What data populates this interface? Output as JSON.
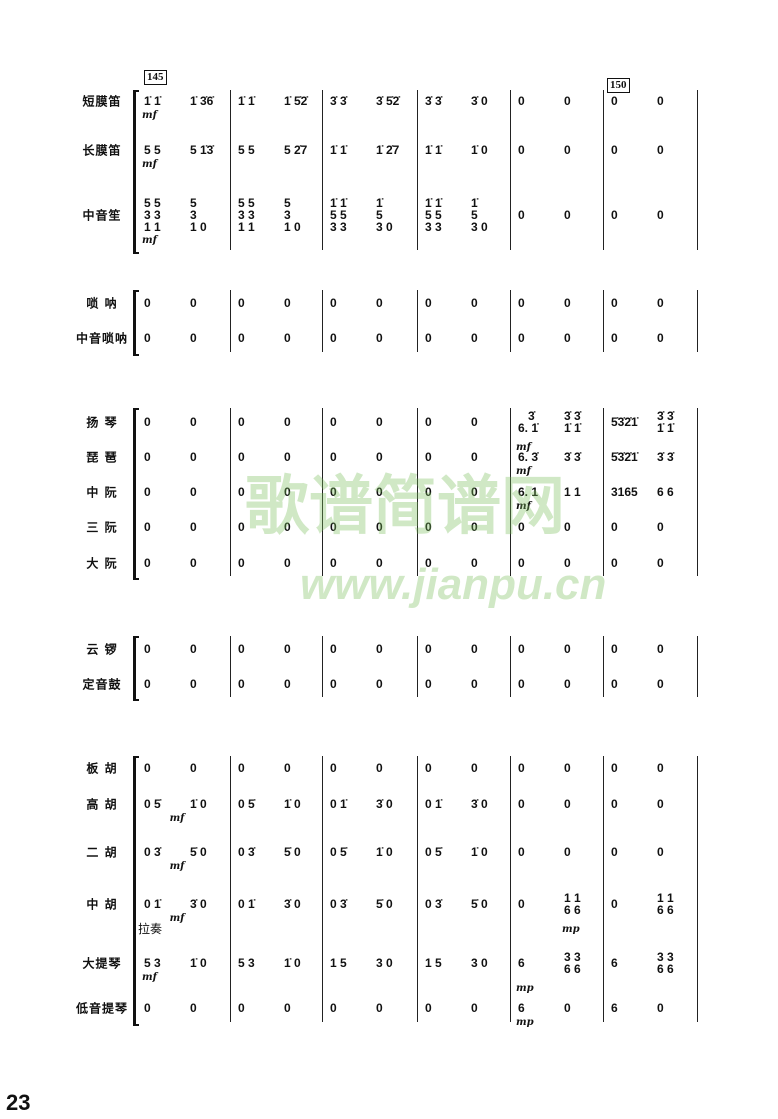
{
  "page_number": "23",
  "rehearsal_marks": [
    "145",
    "150"
  ],
  "annotation_lazou": "拉奏",
  "watermark": {
    "title": "歌谱简谱网",
    "url": "www.jianpu.cn",
    "color": "#78be5a"
  },
  "dynamics": {
    "mf": "mf",
    "mp": "mp"
  },
  "rows": [
    {
      "name": "短膜笛",
      "m": [
        [
          "1̇ 1̇",
          "1̇ 3̇6̇"
        ],
        [
          "1̇ 1̇",
          "1̇ 5̇2̇"
        ],
        [
          "3̇ 3̇",
          "3̇ 5̇2̇"
        ],
        [
          "3̇ 3̇",
          "3̇ 0"
        ],
        [
          "0",
          "0"
        ],
        [
          "0",
          "0"
        ]
      ]
    },
    {
      "name": "长膜笛",
      "m": [
        [
          "5 5",
          "5 1̇3̇"
        ],
        [
          "5 5",
          "5 2̇7"
        ],
        [
          "1̇ 1̇",
          "1̇ 2̇7"
        ],
        [
          "1̇ 1̇",
          "1̇ 0"
        ],
        [
          "0",
          "0"
        ],
        [
          "0",
          "0"
        ]
      ]
    },
    {
      "name": "中音笙",
      "m": [
        [
          "5 5\n3 3\n1 1",
          "5\n3\n1 0"
        ],
        [
          "5 5\n3 3\n1 1",
          "5\n3\n1 0"
        ],
        [
          "1̇ 1̇\n5 5\n3 3",
          "1̇\n5\n3 0"
        ],
        [
          "1̇ 1̇\n5 5\n3 3",
          "1̇\n5\n3 0"
        ],
        [
          "0",
          "0"
        ],
        [
          "0",
          "0"
        ]
      ]
    },
    {
      "name": "唢 呐",
      "m": [
        [
          "0",
          "0"
        ],
        [
          "0",
          "0"
        ],
        [
          "0",
          "0"
        ],
        [
          "0",
          "0"
        ],
        [
          "0",
          "0"
        ],
        [
          "0",
          "0"
        ]
      ]
    },
    {
      "name": "中音唢呐",
      "m": [
        [
          "0",
          "0"
        ],
        [
          "0",
          "0"
        ],
        [
          "0",
          "0"
        ],
        [
          "0",
          "0"
        ],
        [
          "0",
          "0"
        ],
        [
          "0",
          "0"
        ]
      ]
    },
    {
      "name": "扬 琴",
      "m": [
        [
          "0",
          "0"
        ],
        [
          "0",
          "0"
        ],
        [
          "0",
          "0"
        ],
        [
          "0",
          "0"
        ],
        [
          "   3̇\n6. 1̇",
          "3̇ 3̇\n1̇ 1̇"
        ],
        [
          "5̇3̇2̇1̇",
          "3̇ 3̇\n1̇ 1̇"
        ]
      ]
    },
    {
      "name": "琵 琶",
      "m": [
        [
          "0",
          "0"
        ],
        [
          "0",
          "0"
        ],
        [
          "0",
          "0"
        ],
        [
          "0",
          "0"
        ],
        [
          "6. 3̇",
          "3̇ 3̇"
        ],
        [
          "5̇3̇2̇1̇",
          "3̇ 3̇"
        ]
      ]
    },
    {
      "name": "中 阮",
      "m": [
        [
          "0",
          "0"
        ],
        [
          "0",
          "0"
        ],
        [
          "0",
          "0"
        ],
        [
          "0",
          "0"
        ],
        [
          "6. 1",
          "1 1"
        ],
        [
          "3165",
          "6 6"
        ]
      ]
    },
    {
      "name": "三 阮",
      "m": [
        [
          "0",
          "0"
        ],
        [
          "0",
          "0"
        ],
        [
          "0",
          "0"
        ],
        [
          "0",
          "0"
        ],
        [
          "0",
          "0"
        ],
        [
          "0",
          "0"
        ]
      ]
    },
    {
      "name": "大 阮",
      "m": [
        [
          "0",
          "0"
        ],
        [
          "0",
          "0"
        ],
        [
          "0",
          "0"
        ],
        [
          "0",
          "0"
        ],
        [
          "0",
          "0"
        ],
        [
          "0",
          "0"
        ]
      ]
    },
    {
      "name": "云 锣",
      "m": [
        [
          "0",
          "0"
        ],
        [
          "0",
          "0"
        ],
        [
          "0",
          "0"
        ],
        [
          "0",
          "0"
        ],
        [
          "0",
          "0"
        ],
        [
          "0",
          "0"
        ]
      ]
    },
    {
      "name": "定音鼓",
      "m": [
        [
          "0",
          "0"
        ],
        [
          "0",
          "0"
        ],
        [
          "0",
          "0"
        ],
        [
          "0",
          "0"
        ],
        [
          "0",
          "0"
        ],
        [
          "0",
          "0"
        ]
      ]
    },
    {
      "name": "板 胡",
      "m": [
        [
          "0",
          "0"
        ],
        [
          "0",
          "0"
        ],
        [
          "0",
          "0"
        ],
        [
          "0",
          "0"
        ],
        [
          "0",
          "0"
        ],
        [
          "0",
          "0"
        ]
      ]
    },
    {
      "name": "高 胡",
      "m": [
        [
          "0 5̇",
          "1̇ 0"
        ],
        [
          "0 5̇",
          "1̇ 0"
        ],
        [
          "0 1̇",
          "3̇ 0"
        ],
        [
          "0 1̇",
          "3̇ 0"
        ],
        [
          "0",
          "0"
        ],
        [
          "0",
          "0"
        ]
      ]
    },
    {
      "name": "二 胡",
      "m": [
        [
          "0 3̇",
          "5̇ 0"
        ],
        [
          "0 3̇",
          "5̇ 0"
        ],
        [
          "0 5̇",
          "1̇ 0"
        ],
        [
          "0 5̇",
          "1̇ 0"
        ],
        [
          "0",
          "0"
        ],
        [
          "0",
          "0"
        ]
      ]
    },
    {
      "name": "中 胡",
      "m": [
        [
          "0 1̇",
          "3̇ 0"
        ],
        [
          "0 1̇",
          "3̇ 0"
        ],
        [
          "0 3̇",
          "5̇ 0"
        ],
        [
          "0 3̇",
          "5̇ 0"
        ],
        [
          "0",
          "1 1\n6 6"
        ],
        [
          "0",
          "1 1\n6 6"
        ]
      ]
    },
    {
      "name": "大提琴",
      "m": [
        [
          "5 3",
          "1̇ 0"
        ],
        [
          "5 3",
          "1̇ 0"
        ],
        [
          "1 5",
          "3 0"
        ],
        [
          "1 5",
          "3 0"
        ],
        [
          "6",
          "3 3\n6 6"
        ],
        [
          "6",
          "3 3\n6 6"
        ]
      ]
    },
    {
      "name": "低音提琴",
      "m": [
        [
          "0",
          "0"
        ],
        [
          "0",
          "0"
        ],
        [
          "0",
          "0"
        ],
        [
          "0",
          "0"
        ],
        [
          "6",
          "0"
        ],
        [
          "6",
          "0"
        ]
      ]
    }
  ]
}
